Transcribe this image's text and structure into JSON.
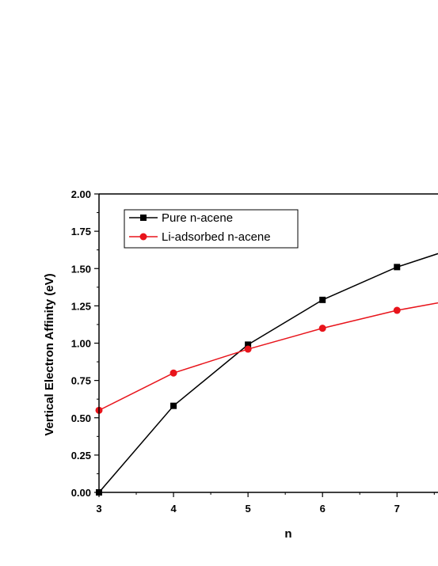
{
  "chart_data": {
    "type": "line",
    "xlabel": "n",
    "ylabel": "Vertical Electron Affinity (eV)",
    "xlim": [
      3,
      7.55
    ],
    "ylim": [
      0,
      2.0
    ],
    "x_ticks": [
      "3",
      "4",
      "5",
      "6",
      "7"
    ],
    "y_ticks": [
      "0.00",
      "0.25",
      "0.50",
      "0.75",
      "1.00",
      "1.25",
      "1.50",
      "1.75",
      "2.00"
    ],
    "legend_position": "top-left",
    "grid": false,
    "series": [
      {
        "name": "Pure n-acene",
        "color": "#000000",
        "marker": "square",
        "x": [
          3,
          4,
          5,
          6,
          7,
          7.55
        ],
        "y": [
          0.0,
          0.58,
          0.99,
          1.29,
          1.51,
          1.6
        ]
      },
      {
        "name": "Li-adsorbed n-acene",
        "color": "#e8141b",
        "marker": "circle",
        "x": [
          3,
          4,
          5,
          6,
          7,
          7.55
        ],
        "y": [
          0.55,
          0.8,
          0.96,
          1.1,
          1.22,
          1.27
        ]
      }
    ]
  }
}
